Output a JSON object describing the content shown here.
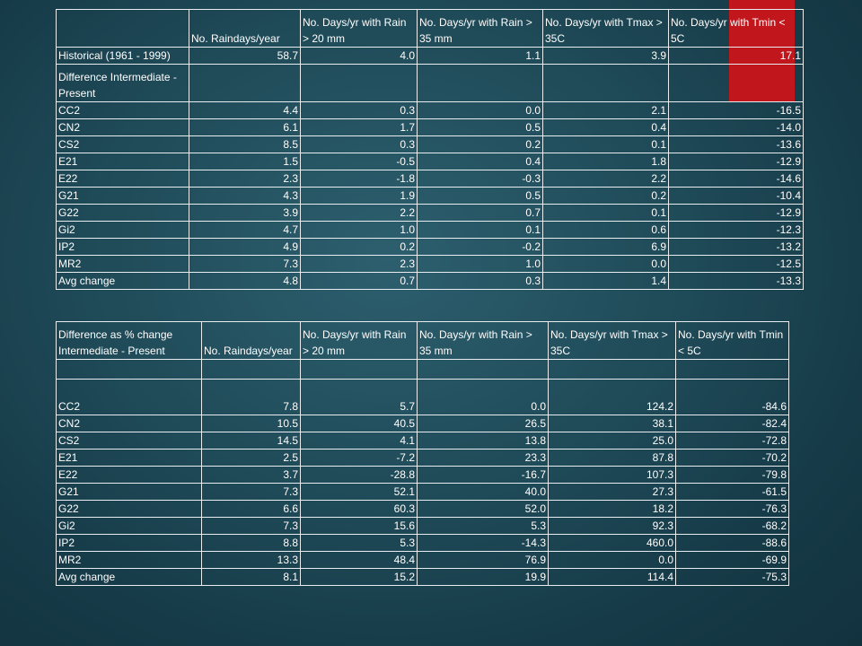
{
  "colors": {
    "accent_bar": "#c0161c",
    "background": "#1f4a58"
  },
  "table1": {
    "headers": [
      "",
      "No. Raindays/year",
      "No. Days/yr with Rain > 20 mm",
      "No. Days/yr with Rain > 35 mm",
      "No. Days/yr with Tmax > 35C",
      "No. Days/yr with Tmin < 5C"
    ],
    "historical": [
      "Historical (1961 - 1999)",
      "58.7",
      "4.0",
      "1.1",
      "3.9",
      "17.1"
    ],
    "section_label": "Difference Intermediate - Present",
    "rows": [
      [
        "CC2",
        "4.4",
        "0.3",
        "0.0",
        "2.1",
        "-16.5"
      ],
      [
        "CN2",
        "6.1",
        "1.7",
        "0.5",
        "0.4",
        "-14.0"
      ],
      [
        "CS2",
        "8.5",
        "0.3",
        "0.2",
        "0.1",
        "-13.6"
      ],
      [
        "E21",
        "1.5",
        "-0.5",
        "0.4",
        "1.8",
        "-12.9"
      ],
      [
        "E22",
        "2.3",
        "-1.8",
        "-0.3",
        "2.2",
        "-14.6"
      ],
      [
        "G21",
        "4.3",
        "1.9",
        "0.5",
        "0.2",
        "-10.4"
      ],
      [
        "G22",
        "3.9",
        "2.2",
        "0.7",
        "0.1",
        "-12.9"
      ],
      [
        "Gi2",
        "4.7",
        "1.0",
        "0.1",
        "0.6",
        "-12.3"
      ],
      [
        "IP2",
        "4.9",
        "0.2",
        "-0.2",
        "6.9",
        "-13.2"
      ],
      [
        "MR2",
        "7.3",
        "2.3",
        "1.0",
        "0.0",
        "-12.5"
      ],
      [
        "Avg change",
        "4.8",
        "0.7",
        "0.3",
        "1.4",
        "-13.3"
      ]
    ]
  },
  "table2": {
    "headers": [
      "Difference as % change Intermediate - Present",
      "No. Raindays/year",
      "No. Days/yr with Rain > 20 mm",
      "No. Days/yr with Rain > 35 mm",
      "No. Days/yr with Tmax > 35C",
      "No. Days/yr with Tmin < 5C"
    ],
    "rows": [
      [
        "CC2",
        "7.8",
        "5.7",
        "0.0",
        "124.2",
        "-84.6"
      ],
      [
        "CN2",
        "10.5",
        "40.5",
        "26.5",
        "38.1",
        "-82.4"
      ],
      [
        "CS2",
        "14.5",
        "4.1",
        "13.8",
        "25.0",
        "-72.8"
      ],
      [
        "E21",
        "2.5",
        "-7.2",
        "23.3",
        "87.8",
        "-70.2"
      ],
      [
        "E22",
        "3.7",
        "-28.8",
        "-16.7",
        "107.3",
        "-79.8"
      ],
      [
        "G21",
        "7.3",
        "52.1",
        "40.0",
        "27.3",
        "-61.5"
      ],
      [
        "G22",
        "6.6",
        "60.3",
        "52.0",
        "18.2",
        "-76.3"
      ],
      [
        "Gi2",
        "7.3",
        "15.6",
        "5.3",
        "92.3",
        "-68.2"
      ],
      [
        "IP2",
        "8.8",
        "5.3",
        "-14.3",
        "460.0",
        "-88.6"
      ],
      [
        "MR2",
        "13.3",
        "48.4",
        "76.9",
        "0.0",
        "-69.9"
      ],
      [
        "Avg change",
        "8.1",
        "15.2",
        "19.9",
        "114.4",
        "-75.3"
      ]
    ]
  }
}
